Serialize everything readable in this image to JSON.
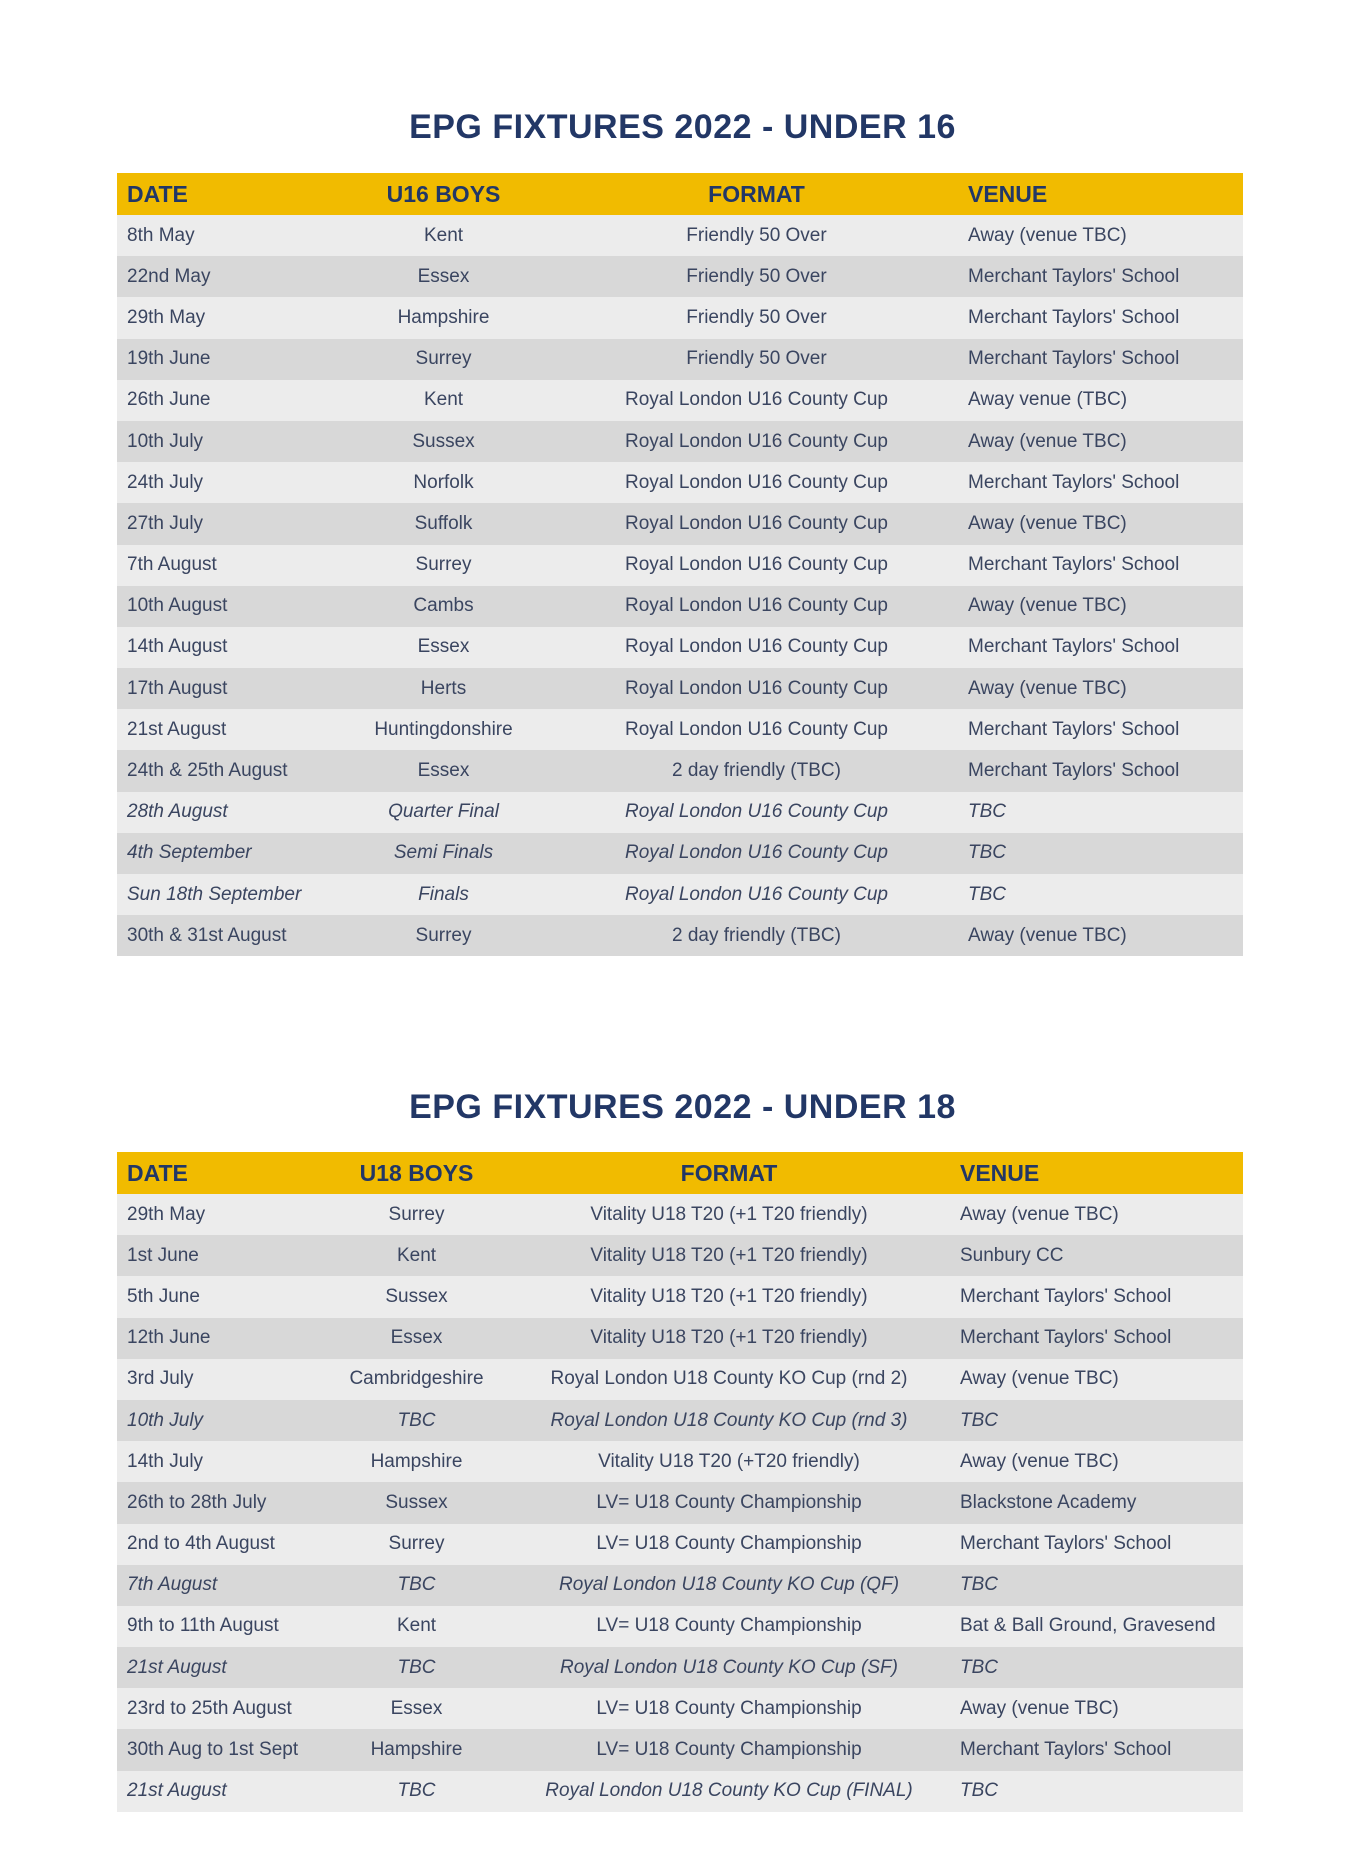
{
  "colors": {
    "header": "#f1bb00",
    "title": "#223766",
    "row_light": "#ececec",
    "row_dark": "#d8d8d8"
  },
  "u16": {
    "title": "EPG FIXTURES 2022 - UNDER 16",
    "headers": [
      "DATE",
      "U16 BOYS",
      "FORMAT",
      "VENUE"
    ],
    "rows": [
      {
        "date": "8th May",
        "team": "Kent",
        "format": "Friendly 50 Over",
        "venue": "Away (venue TBC)",
        "italic": false
      },
      {
        "date": "22nd May",
        "team": "Essex",
        "format": "Friendly 50 Over",
        "venue": "Merchant Taylors' School",
        "italic": false
      },
      {
        "date": "29th May",
        "team": "Hampshire",
        "format": "Friendly 50 Over",
        "venue": "Merchant Taylors' School",
        "italic": false
      },
      {
        "date": "19th June",
        "team": "Surrey",
        "format": "Friendly 50 Over",
        "venue": "Merchant Taylors' School",
        "italic": false
      },
      {
        "date": "26th June",
        "team": "Kent",
        "format": "Royal London U16 County Cup",
        "venue": "Away venue (TBC)",
        "italic": false
      },
      {
        "date": "10th July",
        "team": "Sussex",
        "format": "Royal London U16 County Cup",
        "venue": "Away (venue TBC)",
        "italic": false
      },
      {
        "date": "24th July",
        "team": "Norfolk",
        "format": "Royal London U16 County Cup",
        "venue": "Merchant Taylors' School",
        "italic": false
      },
      {
        "date": "27th July",
        "team": "Suffolk",
        "format": "Royal London U16 County Cup",
        "venue": "Away (venue TBC)",
        "italic": false
      },
      {
        "date": "7th August",
        "team": "Surrey",
        "format": "Royal London U16 County Cup",
        "venue": "Merchant Taylors' School",
        "italic": false
      },
      {
        "date": "10th August",
        "team": "Cambs",
        "format": "Royal London U16 County Cup",
        "venue": "Away (venue TBC)",
        "italic": false
      },
      {
        "date": "14th August",
        "team": "Essex",
        "format": "Royal London U16 County Cup",
        "venue": "Merchant Taylors' School",
        "italic": false
      },
      {
        "date": "17th August",
        "team": "Herts",
        "format": "Royal London U16 County Cup",
        "venue": "Away (venue TBC)",
        "italic": false
      },
      {
        "date": "21st August",
        "team": "Huntingdonshire",
        "format": "Royal London U16 County Cup",
        "venue": "Merchant Taylors' School",
        "italic": false
      },
      {
        "date": "24th & 25th August",
        "team": "Essex",
        "format": "2 day friendly (TBC)",
        "venue": "Merchant Taylors' School",
        "italic": false
      },
      {
        "date": "28th August",
        "team": "Quarter Final",
        "format": "Royal London U16 County Cup",
        "venue": "TBC",
        "italic": true
      },
      {
        "date": "4th September",
        "team": "Semi Finals",
        "format": "Royal London U16 County Cup",
        "venue": "TBC",
        "italic": true
      },
      {
        "date": "Sun 18th September",
        "team": "Finals",
        "format": "Royal London U16 County Cup",
        "venue": "TBC",
        "italic": true
      },
      {
        "date": "30th & 31st August",
        "team": "Surrey",
        "format": "2 day friendly (TBC)",
        "venue": "Away (venue TBC)",
        "italic": false
      }
    ]
  },
  "u18": {
    "title": "EPG FIXTURES 2022 - UNDER 18",
    "headers": [
      "DATE",
      "U18 BOYS",
      "FORMAT",
      "VENUE"
    ],
    "rows": [
      {
        "date": "29th May",
        "team": "Surrey",
        "format": "Vitality U18 T20 (+1 T20 friendly)",
        "venue": "Away (venue TBC)",
        "italic": false
      },
      {
        "date": "1st June",
        "team": "Kent",
        "format": "Vitality U18 T20 (+1 T20 friendly)",
        "venue": "Sunbury CC",
        "italic": false
      },
      {
        "date": "5th June",
        "team": "Sussex",
        "format": "Vitality U18 T20 (+1 T20 friendly)",
        "venue": "Merchant Taylors' School",
        "italic": false
      },
      {
        "date": "12th June",
        "team": "Essex",
        "format": "Vitality U18 T20 (+1 T20 friendly)",
        "venue": "Merchant Taylors' School",
        "italic": false
      },
      {
        "date": "3rd July",
        "team": "Cambridgeshire",
        "format": "Royal London U18 County KO Cup (rnd 2)",
        "venue": "Away (venue TBC)",
        "italic": false
      },
      {
        "date": "10th July",
        "team": "TBC",
        "format": "Royal London U18 County KO Cup (rnd 3)",
        "venue": "TBC",
        "italic": true
      },
      {
        "date": "14th July",
        "team": "Hampshire",
        "format": "Vitality U18 T20 (+T20 friendly)",
        "venue": "Away (venue TBC)",
        "italic": false
      },
      {
        "date": "26th to 28th July",
        "team": "Sussex",
        "format": "LV= U18 County Championship",
        "venue": "Blackstone Academy",
        "italic": false
      },
      {
        "date": "2nd to 4th August",
        "team": "Surrey",
        "format": "LV= U18 County Championship",
        "venue": "Merchant Taylors' School",
        "italic": false
      },
      {
        "date": "7th August",
        "team": "TBC",
        "format": "Royal London U18 County KO Cup (QF)",
        "venue": "TBC",
        "italic": true
      },
      {
        "date": "9th to 11th August",
        "team": "Kent",
        "format": "LV= U18 County Championship",
        "venue": "Bat & Ball Ground, Gravesend",
        "italic": false
      },
      {
        "date": "21st August",
        "team": "TBC",
        "format": "Royal London U18 County KO Cup (SF)",
        "venue": "TBC",
        "italic": true
      },
      {
        "date": "23rd to 25th August",
        "team": "Essex",
        "format": "LV= U18 County Championship",
        "venue": "Away (venue TBC)",
        "italic": false
      },
      {
        "date": "30th Aug to 1st Sept",
        "team": "Hampshire",
        "format": "LV= U18 County Championship",
        "venue": "Merchant Taylors' School",
        "italic": false
      },
      {
        "date": "21st August",
        "team": "TBC",
        "format": "Royal London U18 County KO Cup (FINAL)",
        "venue": "TBC",
        "italic": true
      }
    ]
  }
}
